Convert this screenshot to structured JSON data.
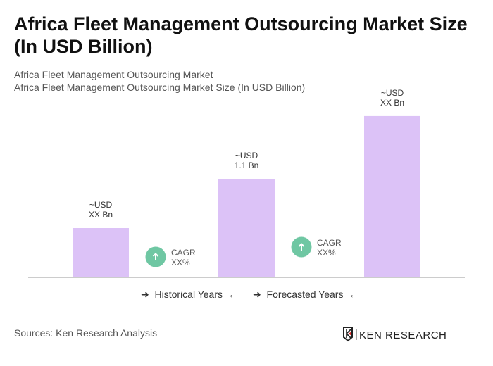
{
  "title": "Africa Fleet Management Outsourcing Market Size (In USD Billion)",
  "subtitle1": "Africa Fleet Management Outsourcing Market",
  "subtitle2": "Africa Fleet Management Outsourcing Market Size (In USD Billion)",
  "chart_data": {
    "type": "bar",
    "title": "Africa Fleet Management Outsourcing Market Size (In USD Billion)",
    "categories": [
      "",
      "",
      ""
    ],
    "values": [
      0.55,
      1.1,
      1.8
    ],
    "data_labels": [
      [
        "~USD",
        "XX Bn"
      ],
      [
        "~USD",
        "1.1 Bn"
      ],
      [
        "~USD",
        "XX Bn"
      ]
    ],
    "bar_color": "#dcc2f7",
    "cagr": [
      {
        "label": "CAGR",
        "value": "XX%"
      },
      {
        "label": "CAGR",
        "value": "XX%"
      }
    ],
    "cagr_color": "#6fc7a3",
    "grid": false
  },
  "legend": {
    "historical": "Historical Years",
    "forecasted": "Forecasted Years"
  },
  "source": "Sources: Ken Research Analysis",
  "logo_text": "KEN RESEARCH"
}
